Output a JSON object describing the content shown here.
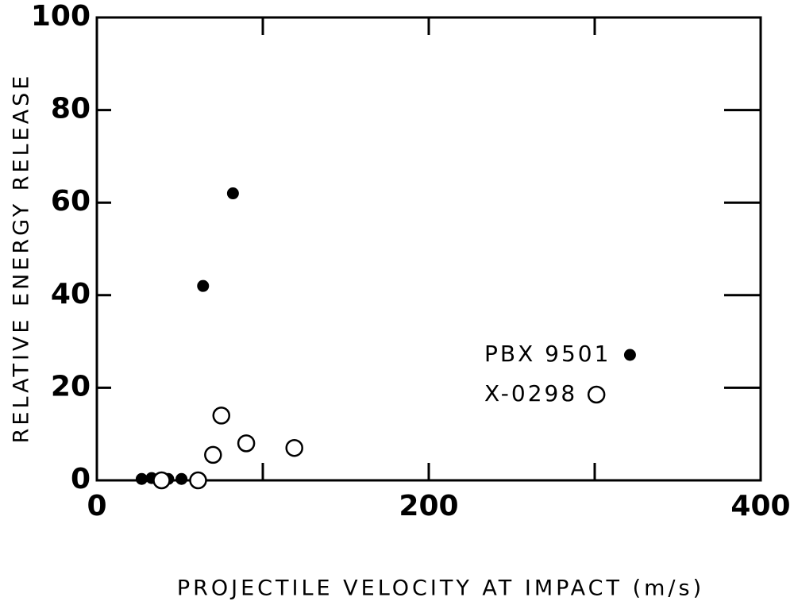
{
  "chart_data": {
    "type": "scatter",
    "xlabel": "PROJECTILE VELOCITY AT IMPACT  (m/s)",
    "ylabel": "RELATIVE ENERGY RELEASE",
    "xlim": [
      0,
      400
    ],
    "ylim": [
      0,
      100
    ],
    "xticks": [
      0,
      200,
      400
    ],
    "x_minor_ticks": [
      100,
      300
    ],
    "yticks": [
      0,
      20,
      40,
      60,
      80,
      100
    ],
    "legend": "right",
    "series": [
      {
        "name": "PBX 9501",
        "marker": "filled",
        "color": "#000000",
        "x": [
          27,
          33,
          43,
          51,
          64,
          82
        ],
        "values": [
          0.3,
          0.5,
          0.3,
          0.3,
          42,
          62
        ]
      },
      {
        "name": "X-0298",
        "marker": "open",
        "color": "#000000",
        "x": [
          39,
          61,
          70,
          75,
          90,
          119
        ],
        "values": [
          0,
          0,
          5.5,
          14,
          8,
          7
        ]
      }
    ]
  }
}
